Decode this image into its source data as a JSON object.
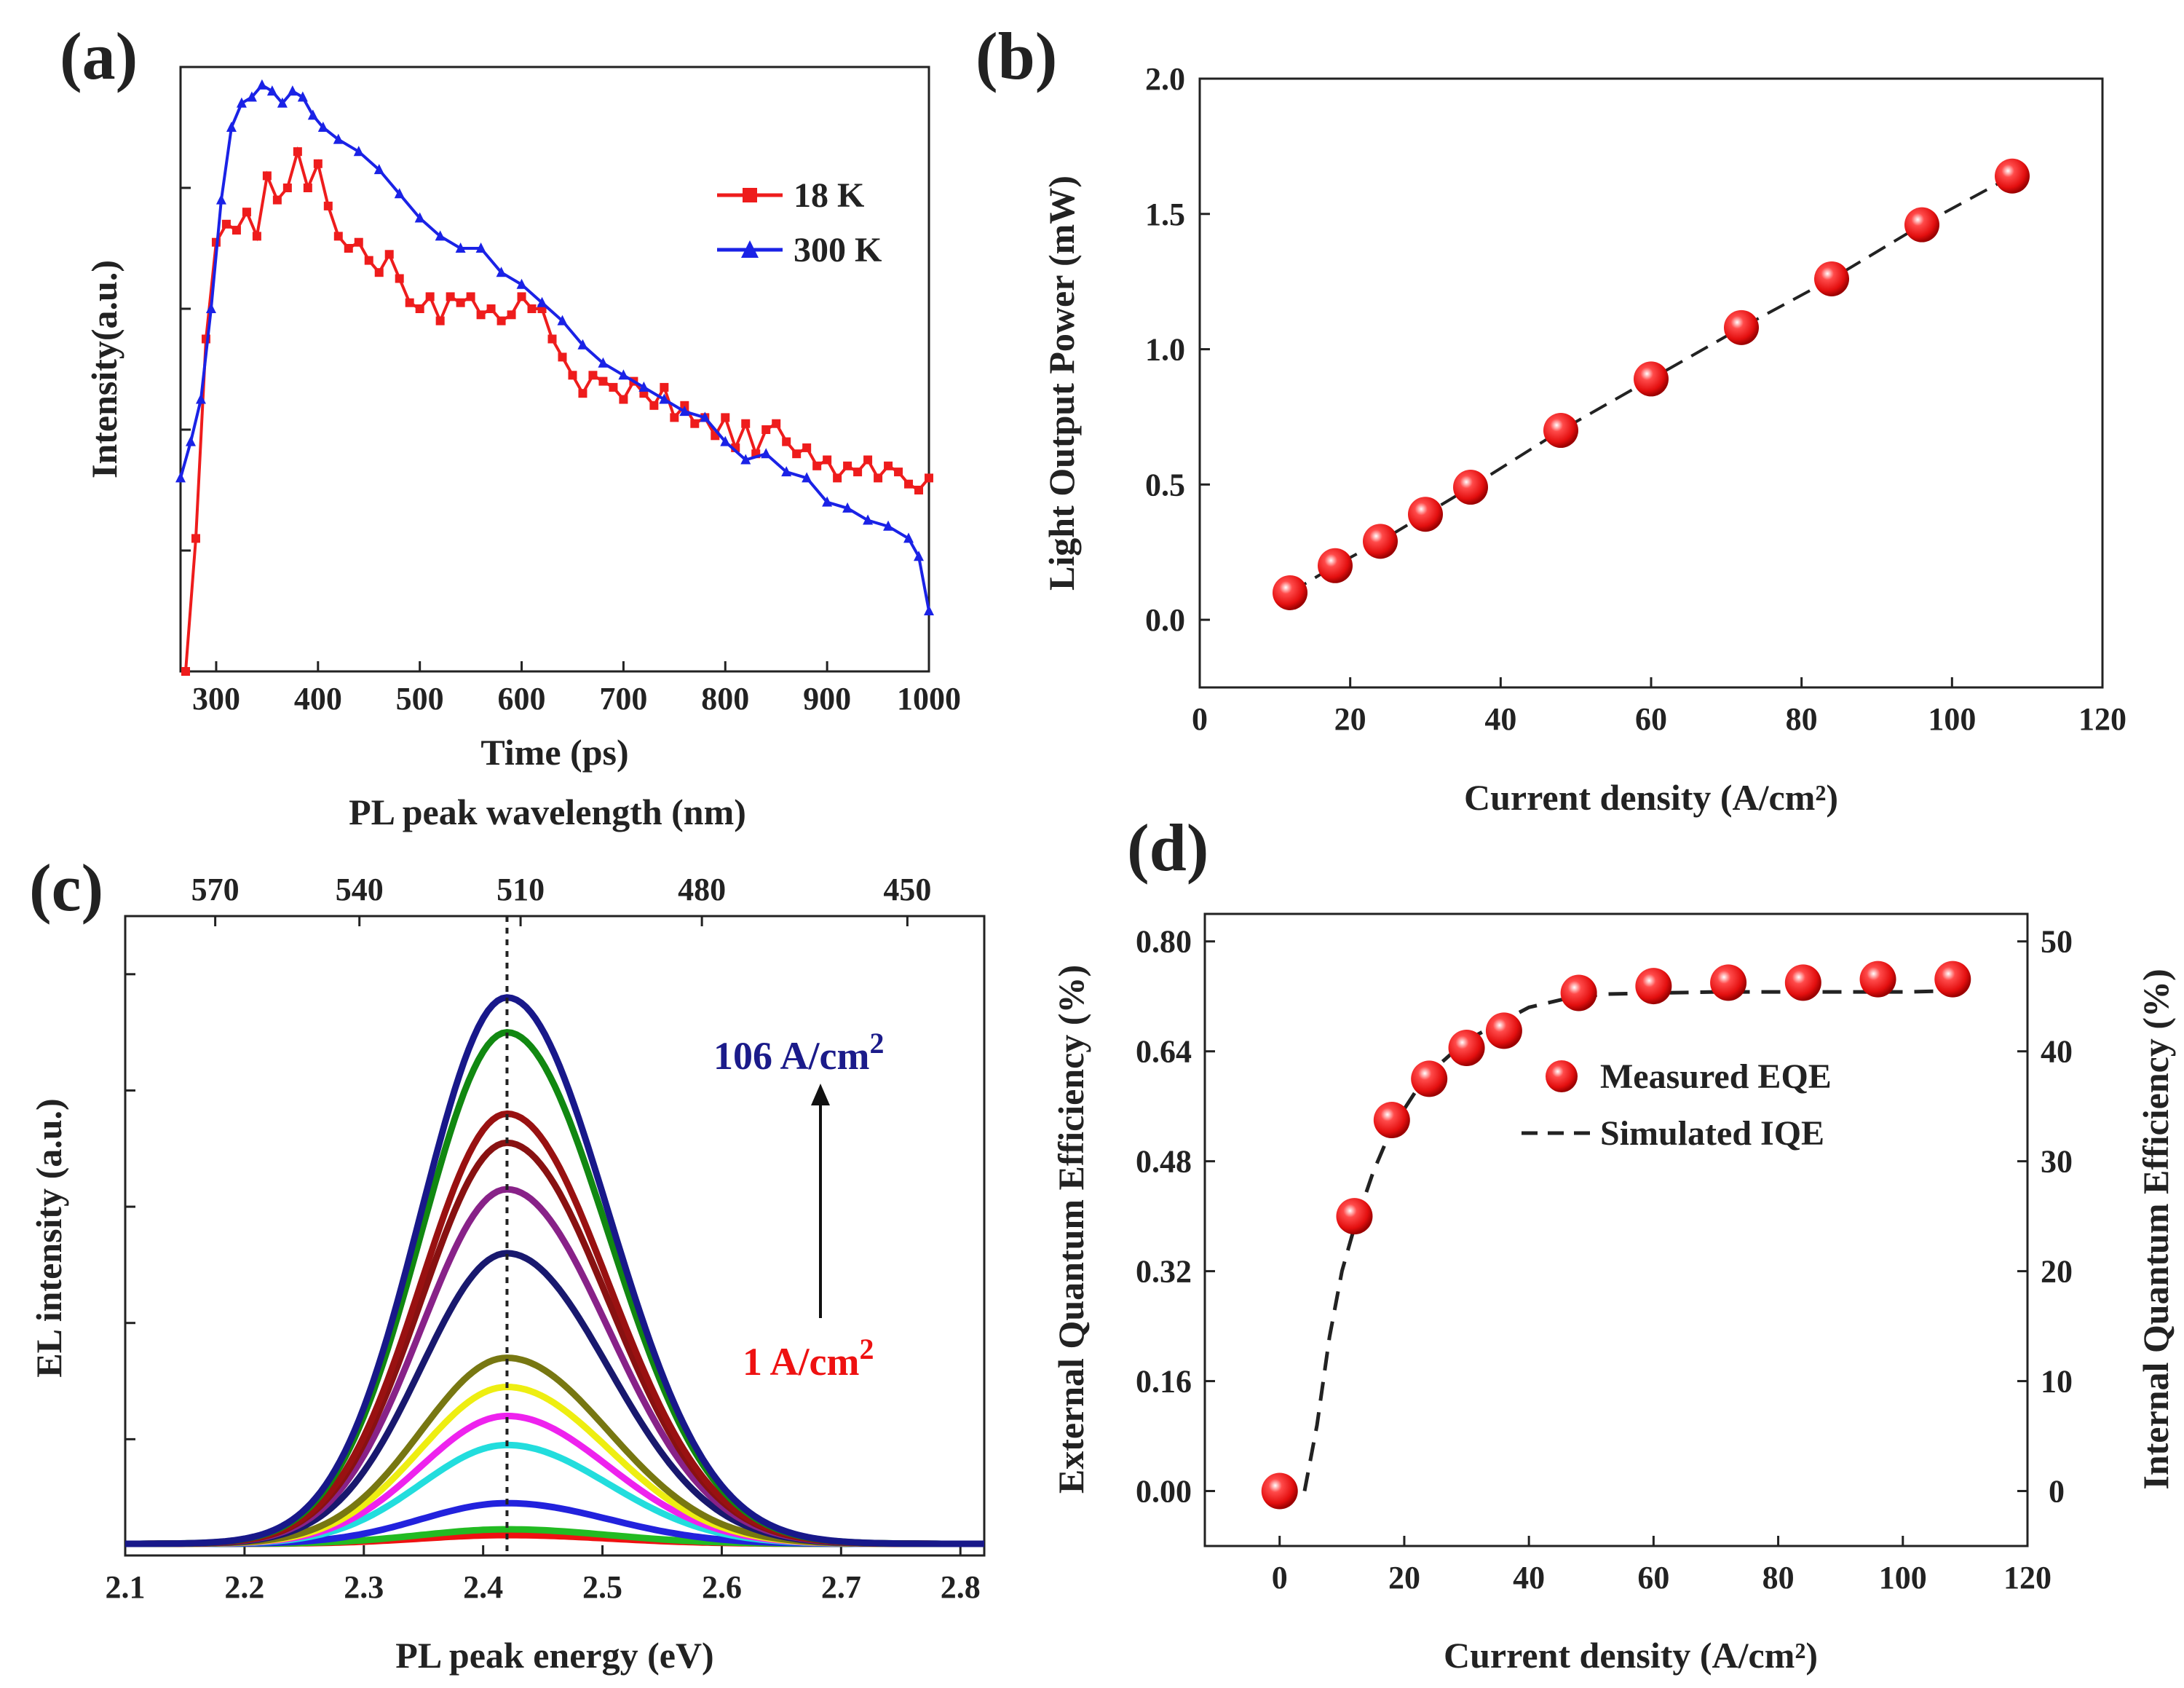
{
  "chart_data": [
    {
      "panel": "(a)",
      "type": "line",
      "title": "",
      "xlabel": "Time (ps)",
      "ylabel": "Intensity(a.u.)",
      "xlim": [
        265,
        1000
      ],
      "ylim": [
        0,
        1.0
      ],
      "xticks": [
        "300",
        "400",
        "500",
        "600",
        "700",
        "800",
        "900",
        "1000"
      ],
      "legend": {
        "position": "top-right"
      },
      "series": [
        {
          "name": "18 K",
          "color": "#ee1c1c",
          "marker": "square",
          "x": [
            270,
            280,
            290,
            300,
            310,
            320,
            330,
            340,
            350,
            360,
            370,
            380,
            390,
            400,
            410,
            420,
            430,
            440,
            450,
            460,
            470,
            480,
            490,
            500,
            510,
            520,
            530,
            540,
            550,
            560,
            570,
            580,
            590,
            600,
            610,
            620,
            630,
            640,
            650,
            660,
            670,
            680,
            690,
            700,
            710,
            720,
            730,
            740,
            750,
            760,
            770,
            780,
            790,
            800,
            810,
            820,
            830,
            840,
            850,
            860,
            870,
            880,
            890,
            900,
            910,
            920,
            930,
            940,
            950,
            960,
            970,
            980,
            990,
            1000
          ],
          "values": [
            0.0,
            0.22,
            0.55,
            0.71,
            0.74,
            0.73,
            0.76,
            0.72,
            0.82,
            0.78,
            0.8,
            0.86,
            0.8,
            0.84,
            0.77,
            0.72,
            0.7,
            0.71,
            0.68,
            0.66,
            0.69,
            0.65,
            0.61,
            0.6,
            0.62,
            0.58,
            0.62,
            0.61,
            0.62,
            0.59,
            0.6,
            0.58,
            0.59,
            0.62,
            0.6,
            0.6,
            0.55,
            0.52,
            0.49,
            0.46,
            0.49,
            0.48,
            0.47,
            0.45,
            0.48,
            0.46,
            0.44,
            0.47,
            0.42,
            0.44,
            0.41,
            0.42,
            0.39,
            0.42,
            0.37,
            0.41,
            0.36,
            0.4,
            0.41,
            0.38,
            0.36,
            0.37,
            0.34,
            0.35,
            0.32,
            0.34,
            0.33,
            0.35,
            0.32,
            0.34,
            0.33,
            0.31,
            0.3,
            0.32
          ]
        },
        {
          "name": "300 K",
          "color": "#1a22e6",
          "marker": "triangle",
          "x": [
            265,
            275,
            285,
            295,
            305,
            315,
            325,
            335,
            345,
            355,
            365,
            375,
            385,
            395,
            405,
            420,
            440,
            460,
            480,
            500,
            520,
            540,
            560,
            580,
            600,
            620,
            640,
            660,
            680,
            700,
            720,
            740,
            760,
            780,
            800,
            820,
            840,
            860,
            880,
            900,
            920,
            940,
            960,
            980,
            990,
            1000
          ],
          "values": [
            0.32,
            0.38,
            0.45,
            0.6,
            0.78,
            0.9,
            0.94,
            0.95,
            0.97,
            0.96,
            0.94,
            0.96,
            0.95,
            0.92,
            0.9,
            0.88,
            0.86,
            0.83,
            0.79,
            0.75,
            0.72,
            0.7,
            0.7,
            0.66,
            0.64,
            0.61,
            0.58,
            0.54,
            0.51,
            0.49,
            0.47,
            0.45,
            0.43,
            0.42,
            0.38,
            0.35,
            0.36,
            0.33,
            0.32,
            0.28,
            0.27,
            0.25,
            0.24,
            0.22,
            0.19,
            0.1
          ]
        }
      ]
    },
    {
      "panel": "(b)",
      "type": "scatter",
      "title": "",
      "xlabel": "Current density  (A/cm²)",
      "ylabel": "Light Output Power (mW)",
      "xlim": [
        0,
        120
      ],
      "ylim": [
        -0.25,
        2.0
      ],
      "xticks": [
        "0",
        "20",
        "40",
        "60",
        "80",
        "100",
        "120"
      ],
      "yticks": [
        "0.0",
        "0.5",
        "1.0",
        "1.5",
        "2.0"
      ],
      "series": [
        {
          "name": "Light output power",
          "color": "#ee1111",
          "line": "dashed fit",
          "x": [
            12,
            18,
            24,
            30,
            36,
            48,
            60,
            72,
            84,
            96,
            108
          ],
          "values": [
            0.1,
            0.2,
            0.29,
            0.39,
            0.49,
            0.7,
            0.89,
            1.08,
            1.26,
            1.46,
            1.64
          ]
        }
      ]
    },
    {
      "panel": "(c)",
      "type": "line",
      "title": "",
      "xlabel": "PL peak energy (eV)",
      "ylabel": "EL intensity (a.u.)",
      "top_xlabel": "PL peak wavelength  (nm)",
      "xlim": [
        2.1,
        2.82
      ],
      "ylim": [
        0,
        1.1
      ],
      "xticks": [
        "2.1",
        "2.2",
        "2.3",
        "2.4",
        "2.5",
        "2.6",
        "2.7",
        "2.8"
      ],
      "top_xticks": [
        "570",
        "540",
        "510",
        "480",
        "450"
      ],
      "peak_energy_eV": 2.42,
      "annotations": [
        {
          "text": "106 A/cm",
          "sup": "2",
          "color": "#1b1b8a"
        },
        {
          "text": "1 A/cm",
          "sup": "2",
          "color": "#ee1111"
        }
      ],
      "series": [
        {
          "name": "curve 1",
          "color": "#ee1111",
          "peak": 0.015
        },
        {
          "name": "curve 2",
          "color": "#22bb22",
          "peak": 0.025
        },
        {
          "name": "curve 3",
          "color": "#2222dd",
          "peak": 0.07
        },
        {
          "name": "curve 4",
          "color": "#22dddd",
          "peak": 0.17
        },
        {
          "name": "curve 5",
          "color": "#ee22ee",
          "peak": 0.22
        },
        {
          "name": "curve 6",
          "color": "#eeee11",
          "peak": 0.27
        },
        {
          "name": "curve 7",
          "color": "#777711",
          "peak": 0.32
        },
        {
          "name": "curve 8",
          "color": "#18186e",
          "peak": 0.5
        },
        {
          "name": "curve 9",
          "color": "#882288",
          "peak": 0.61
        },
        {
          "name": "curve 10",
          "color": "#881111",
          "peak": 0.69
        },
        {
          "name": "curve 11",
          "color": "#991111",
          "peak": 0.74
        },
        {
          "name": "curve 12",
          "color": "#118811",
          "peak": 0.88
        },
        {
          "name": "curve 13",
          "color": "#18188a",
          "peak": 0.94
        }
      ]
    },
    {
      "panel": "(d)",
      "type": "scatter",
      "title": "",
      "xlabel": "Current density  (A/cm²)",
      "ylabel": "External Quantum Efficiency (%)",
      "y2label": "Internal Quantum Efficiency (%)",
      "xlim": [
        -12,
        120
      ],
      "ylim": [
        -0.08,
        0.84
      ],
      "y2lim": [
        -5,
        52.5
      ],
      "xticks": [
        "0",
        "20",
        "40",
        "60",
        "80",
        "100",
        "120"
      ],
      "yticks": [
        "0.00",
        "0.16",
        "0.32",
        "0.48",
        "0.64",
        "0.80"
      ],
      "y2ticks": [
        "0",
        "10",
        "20",
        "30",
        "40",
        "50"
      ],
      "legend": {
        "position": "center-right"
      },
      "series": [
        {
          "name": "Measured EQE",
          "color": "#ee1111",
          "marker": "sphere",
          "x": [
            0,
            12,
            18,
            24,
            30,
            36,
            48,
            60,
            72,
            84,
            96,
            108
          ],
          "values": [
            0.0,
            0.4,
            0.54,
            0.6,
            0.645,
            0.67,
            0.725,
            0.735,
            0.74,
            0.74,
            0.745,
            0.745
          ]
        },
        {
          "name": "Simulated IQE",
          "color": "#222222",
          "line": "dashed",
          "axis": "right",
          "x": [
            4,
            6,
            8,
            10,
            12,
            15,
            18,
            22,
            26,
            30,
            35,
            40,
            46,
            52,
            60,
            70,
            80,
            90,
            100,
            108
          ],
          "values": [
            0,
            6,
            14,
            20,
            24,
            29,
            33,
            36.5,
            39,
            41,
            42.5,
            44,
            44.8,
            45.2,
            45.3,
            45.4,
            45.4,
            45.4,
            45.4,
            45.5
          ]
        }
      ]
    }
  ]
}
